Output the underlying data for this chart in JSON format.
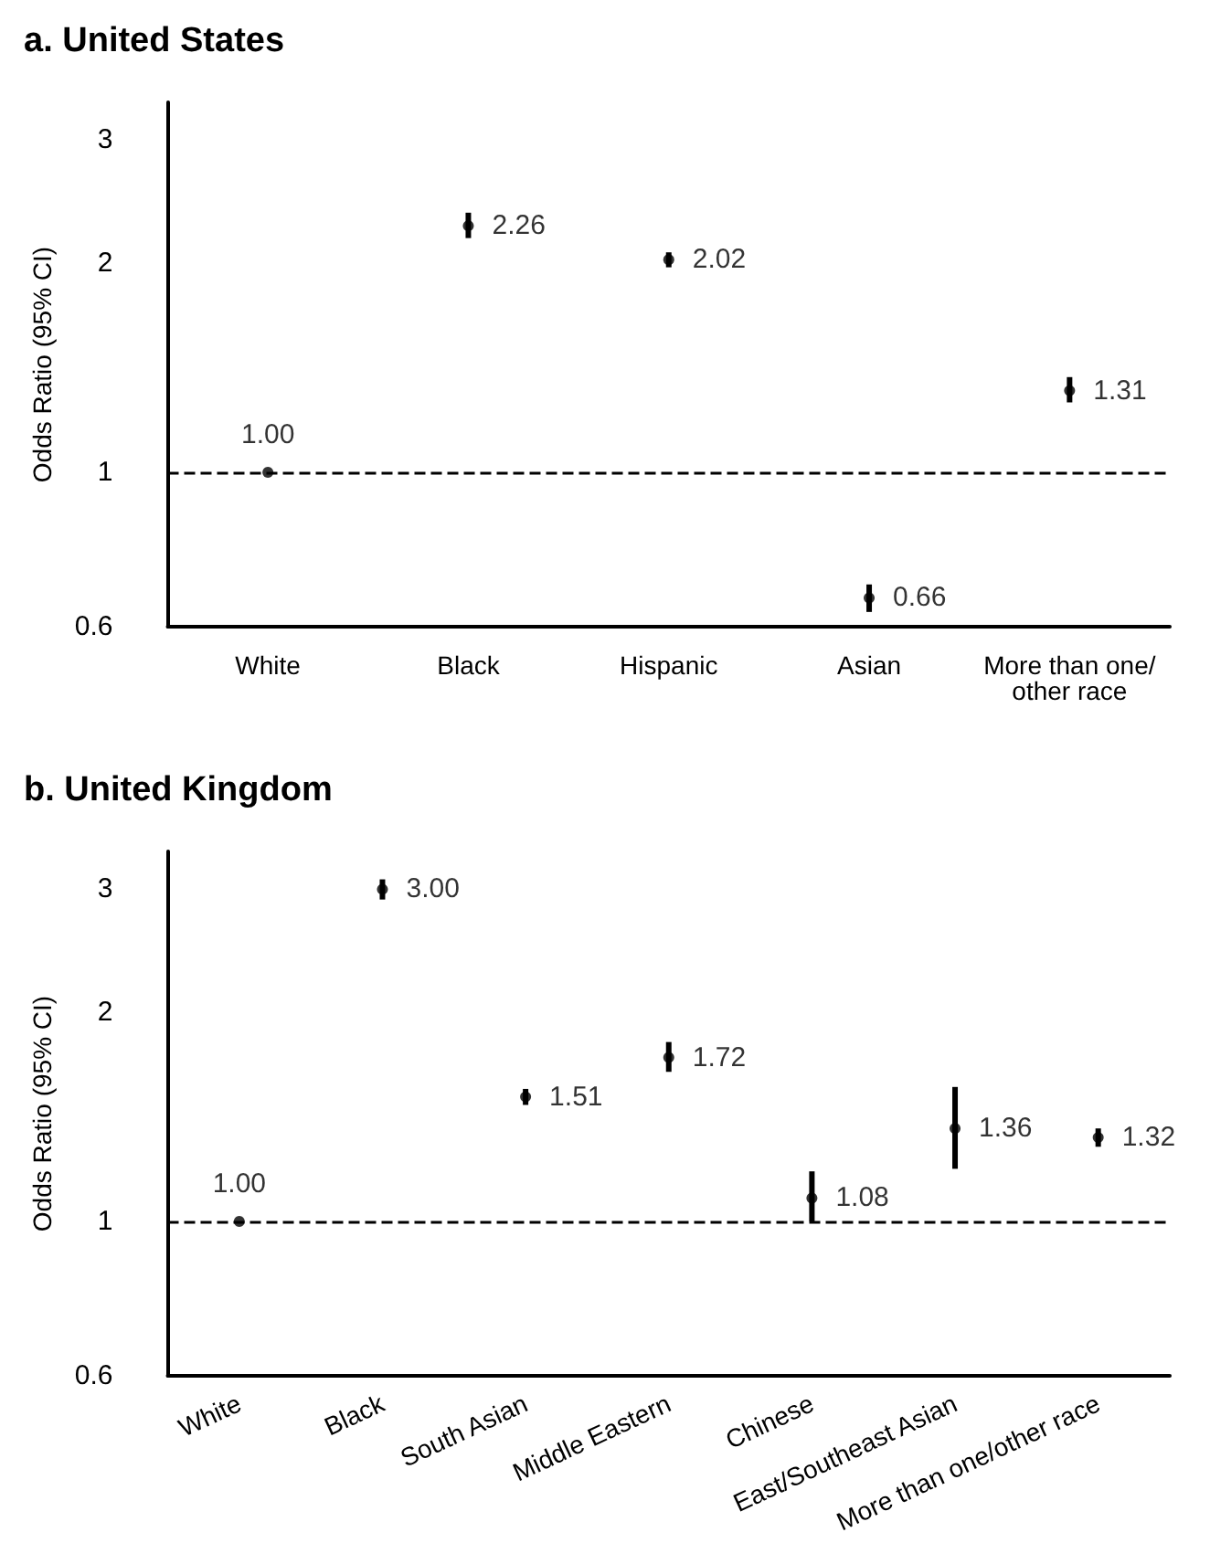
{
  "chart_data": [
    {
      "type": "scatter",
      "title": "a. United States",
      "ylabel": "Odds Ratio (95% CI)",
      "categories": [
        "White",
        "Black",
        "Hispanic",
        "Asian",
        "More than one/other race"
      ],
      "values": [
        1.0,
        2.26,
        2.02,
        0.66,
        1.31
      ],
      "value_labels": [
        "1.00",
        "2.26",
        "2.02",
        "0.66",
        "1.31"
      ],
      "errors": [
        null,
        [
          2.17,
          2.36
        ],
        [
          1.97,
          2.07
        ],
        [
          0.63,
          0.69
        ],
        [
          1.26,
          1.37
        ]
      ],
      "color": "#000000",
      "ylim": [
        0.6,
        3.4
      ],
      "yticks": [
        0.6,
        1,
        2,
        3
      ],
      "log": true,
      "grid": false,
      "marker": "circle",
      "ref_lines": [
        {
          "axis": "y",
          "value": 1,
          "line_style": "dashed",
          "color": "#000000"
        }
      ]
    },
    {
      "type": "scatter",
      "title": "b. United Kingdom",
      "ylabel": "Odds Ratio (95% CI)",
      "categories": [
        "White",
        "Black",
        "South Asian",
        "Middle Eastern",
        "Chinese",
        "East/Southeast Asian",
        "More than one/other race"
      ],
      "values": [
        1.0,
        3.0,
        1.51,
        1.72,
        1.08,
        1.36,
        1.32
      ],
      "value_labels": [
        "1.00",
        "3.00",
        "1.51",
        "1.72",
        "1.08",
        "1.36",
        "1.32"
      ],
      "errors": [
        null,
        [
          2.9,
          3.1
        ],
        [
          1.47,
          1.55
        ],
        [
          1.64,
          1.81
        ],
        [
          1.0,
          1.18
        ],
        [
          1.19,
          1.56
        ],
        [
          1.28,
          1.36
        ]
      ],
      "color": "#000000",
      "ylim": [
        0.6,
        3.4
      ],
      "yticks": [
        0.6,
        1,
        2,
        3
      ],
      "log": true,
      "grid": false,
      "marker": "circle",
      "ref_lines": [
        {
          "axis": "y",
          "value": 1,
          "line_style": "dashed",
          "color": "#000000"
        }
      ]
    }
  ]
}
